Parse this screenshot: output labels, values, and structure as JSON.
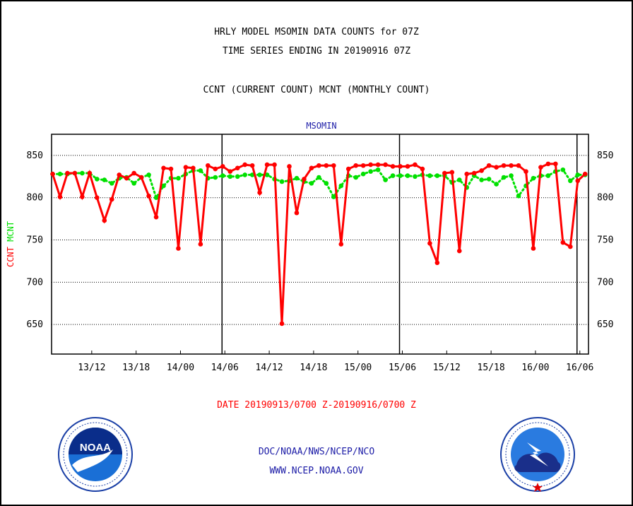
{
  "header": {
    "line1": "HRLY MODEL MSOMIN DATA COUNTS for 07Z",
    "line2": "TIME SERIES ENDING IN 20190916 07Z",
    "line3": "CCNT (CURRENT COUNT) MCNT (MONTHLY COUNT)"
  },
  "footer": {
    "date_range": "DATE 20190913/0700 Z-20190916/0700 Z",
    "org": "DOC/NOAA/NWS/NCEP/NCO",
    "url": "WWW.NCEP.NOAA.GOV"
  },
  "logos": {
    "left": {
      "text": "NOAA",
      "ring_text": "NATIONAL OCEANIC AND ATMOSPHERIC ADMINISTRATION · U.S. DEPARTMENT OF COMMERCE",
      "icon": "noaa-logo"
    },
    "right": {
      "ring_text": "NATIONAL WEATHER SERVICE",
      "icon": "nws-logo"
    }
  },
  "colors": {
    "ccnt": "#ff0000",
    "mcnt": "#00e000",
    "title": "#1a1aa6",
    "footer_date": "#ff0000"
  },
  "chart_data": {
    "type": "line",
    "title": "MSOMIN",
    "ylabel_series": [
      {
        "text": "CCNT",
        "color": "#ff0000"
      },
      {
        "text": "MCNT",
        "color": "#00e000"
      }
    ],
    "x_ticks": [
      "13/12",
      "13/18",
      "14/00",
      "14/06",
      "14/12",
      "14/18",
      "15/00",
      "15/06",
      "15/12",
      "15/18",
      "16/00",
      "16/06"
    ],
    "y_ticks": [
      650,
      700,
      750,
      800,
      850
    ],
    "ylim": [
      615,
      875
    ],
    "xlim": [
      0,
      72
    ],
    "grid": "horizontal-dotted",
    "day_separators": [
      23,
      47,
      71
    ],
    "series": [
      {
        "name": "CCNT",
        "color": "#ff0000",
        "values": [
          828,
          801,
          829,
          829,
          801,
          829,
          800,
          773,
          798,
          827,
          823,
          829,
          824,
          802,
          777,
          835,
          834,
          740,
          836,
          835,
          745,
          838,
          834,
          837,
          831,
          835,
          839,
          838,
          806,
          839,
          839,
          651,
          837,
          782,
          822,
          835,
          838,
          838,
          838,
          745,
          834,
          838,
          838,
          839,
          839,
          839,
          837,
          837,
          837,
          839,
          834,
          746,
          723,
          829,
          830,
          737,
          828,
          829,
          832,
          838,
          836,
          838,
          838,
          838,
          831,
          740,
          836,
          840,
          840,
          747,
          742,
          820,
          828
        ]
      },
      {
        "name": "MCNT",
        "color": "#00e000",
        "values": [
          828,
          828,
          828,
          829,
          829,
          829,
          822,
          821,
          817,
          823,
          824,
          817,
          824,
          827,
          800,
          814,
          823,
          823,
          828,
          832,
          832,
          823,
          824,
          826,
          825,
          825,
          827,
          827,
          827,
          827,
          822,
          819,
          820,
          823,
          819,
          817,
          824,
          817,
          801,
          814,
          826,
          824,
          828,
          831,
          833,
          821,
          826,
          826,
          826,
          825,
          827,
          826,
          826,
          826,
          818,
          821,
          812,
          826,
          821,
          822,
          816,
          824,
          826,
          802,
          814,
          823,
          826,
          826,
          831,
          833,
          820,
          827,
          827
        ]
      }
    ]
  }
}
